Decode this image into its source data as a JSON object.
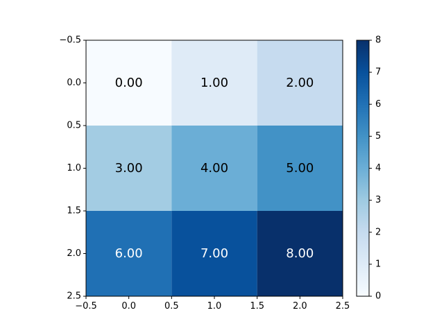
{
  "chart_data": {
    "type": "heatmap",
    "title": "",
    "xlabel": "",
    "ylabel": "",
    "colormap": "Blues",
    "x_centers": [
      0,
      1,
      2
    ],
    "y_centers": [
      0,
      1,
      2
    ],
    "values": [
      [
        0,
        1,
        2
      ],
      [
        3,
        4,
        5
      ],
      [
        6,
        7,
        8
      ]
    ],
    "cell_labels": [
      [
        "0.00",
        "1.00",
        "2.00"
      ],
      [
        "3.00",
        "4.00",
        "5.00"
      ],
      [
        "6.00",
        "7.00",
        "8.00"
      ]
    ],
    "cell_text_colors": [
      [
        "#000000",
        "#000000",
        "#000000"
      ],
      [
        "#000000",
        "#000000",
        "#000000"
      ],
      [
        "#ffffff",
        "#ffffff",
        "#ffffff"
      ]
    ],
    "cell_colors": [
      [
        "#f7fbff",
        "#dfebf7",
        "#c6dbef"
      ],
      [
        "#a3cce3",
        "#6baed6",
        "#4292c6"
      ],
      [
        "#2070b4",
        "#08519c",
        "#08306b"
      ]
    ],
    "xlim": [
      -0.5,
      2.5
    ],
    "ylim": [
      2.5,
      -0.5
    ],
    "y_inverted": true,
    "xticks": [
      -0.5,
      0.0,
      0.5,
      1.0,
      1.5,
      2.0,
      2.5
    ],
    "xtick_labels": [
      "−0.5",
      "0.0",
      "0.5",
      "1.0",
      "1.5",
      "2.0",
      "2.5"
    ],
    "yticks": [
      -0.5,
      0.0,
      0.5,
      1.0,
      1.5,
      2.0,
      2.5
    ],
    "ytick_labels": [
      "−0.5",
      "0.0",
      "0.5",
      "1.0",
      "1.5",
      "2.0",
      "2.5"
    ],
    "colorbar": {
      "range": [
        0,
        8
      ],
      "ticks": [
        0,
        1,
        2,
        3,
        4,
        5,
        6,
        7,
        8
      ],
      "tick_labels": [
        "0",
        "1",
        "2",
        "3",
        "4",
        "5",
        "6",
        "7",
        "8"
      ],
      "stops": [
        "#f7fbff",
        "#deebf7",
        "#c6dbef",
        "#9ecae1",
        "#6baed6",
        "#4292c6",
        "#2171b5",
        "#08519c",
        "#08306b"
      ]
    },
    "grid": false,
    "legend": "none"
  }
}
